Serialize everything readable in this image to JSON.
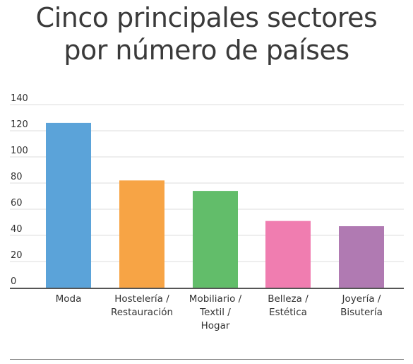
{
  "chart_data": {
    "type": "bar",
    "title_lines": [
      "Cinco principales sectores",
      "por número de países"
    ],
    "categories": [
      [
        "Moda"
      ],
      [
        "Hostelería /",
        "Restauración"
      ],
      [
        "Mobiliario /",
        "Textil /",
        "Hogar"
      ],
      [
        "Belleza /",
        "Estética"
      ],
      [
        "Joyería /",
        "Bisutería"
      ]
    ],
    "values": [
      126,
      82,
      74,
      51,
      47
    ],
    "colors": [
      "#5ba3d9",
      "#f7a445",
      "#62bd6a",
      "#f07db0",
      "#b07ab2"
    ],
    "ylim": [
      0,
      140
    ],
    "yticks": [
      0,
      20,
      40,
      60,
      80,
      100,
      120,
      140
    ],
    "grid": true,
    "xlabel": "",
    "ylabel": ""
  }
}
